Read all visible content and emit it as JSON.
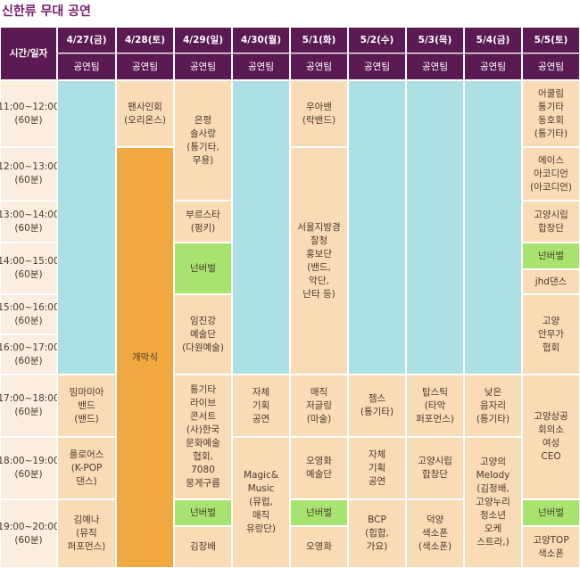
{
  "title": "신한류 무대 공연",
  "corner": "시간/일자",
  "times": [
    [
      "11:00~12:00",
      "(60분)"
    ],
    [
      "12:00~13:00",
      "(60분)"
    ],
    [
      "13:00~14:00",
      "(60분)"
    ],
    [
      "14:00~15:00",
      "(60분)"
    ],
    [
      "15:00~16:00",
      "(60분)"
    ],
    [
      "16:00~17:00",
      "(60분)"
    ],
    [
      "17:00~18:00",
      "(60분)"
    ],
    [
      "18:00~19:00",
      "(60분)"
    ],
    [
      "19:00~20:00",
      "(60분)"
    ]
  ],
  "columns": [
    {
      "date": "4/27(금)",
      "team": "공연팀",
      "cells": [
        [
          "밈마미아",
          "밴드",
          "(밴드)"
        ],
        [
          "플로어스",
          "(K-POP",
          "댄스)"
        ],
        [
          "김예나",
          "(뮤직",
          "퍼포먼스)"
        ]
      ]
    },
    {
      "date": "4/28(토)",
      "team": "공연팀",
      "cells": [
        [
          "팬사인회",
          "(오리온스)"
        ],
        [
          "개막식"
        ]
      ]
    },
    {
      "date": "4/29(일)",
      "team": "공연팀",
      "cells": [
        [
          "은평",
          "솔사랑",
          "(통기타,",
          "무용)"
        ],
        [
          "부르스타",
          "(펑키)"
        ],
        [
          "넌버벌"
        ],
        [
          "임진강",
          "예술단",
          "(다원예술)"
        ],
        [
          "통기타",
          "라이브",
          "콘서트",
          "(사)한국",
          "문화예술",
          "협회,",
          "7080",
          "뭉게구름"
        ],
        [
          "넌버벌"
        ],
        [
          "김장배"
        ]
      ]
    },
    {
      "date": "4/30(월)",
      "team": "공연팀",
      "cells": [
        [
          "자체",
          "기획",
          "공연"
        ],
        [
          "Magic&",
          "Music",
          "(뮤럽,",
          "매직",
          "유랑단)"
        ]
      ]
    },
    {
      "date": "5/1(화)",
      "team": "공연팀",
      "cells": [
        [
          "우아밴",
          "(락밴드)"
        ],
        [
          "서울지방경",
          "찰청",
          "홍보단",
          "(밴드,",
          "악단,",
          "난타 등)"
        ],
        [
          "매직",
          "저글링",
          "(마술)"
        ],
        [
          "오영화",
          "예술단"
        ],
        [
          "넌버벌"
        ],
        [
          "오영화"
        ]
      ]
    },
    {
      "date": "5/2(수)",
      "team": "공연팀",
      "cells": [
        [
          "젬스",
          "(통기타)"
        ],
        [
          "자체",
          "기획",
          "공연"
        ],
        [
          "BCP",
          "(힙합,",
          "가요)"
        ]
      ]
    },
    {
      "date": "5/3(목)",
      "team": "공연팀",
      "cells": [
        [
          "탑스틱",
          "(타악",
          "퍼포먼스)"
        ],
        [
          "고양시립",
          "합창단"
        ],
        [
          "덕양",
          "색소폰",
          "(색소폰)"
        ]
      ]
    },
    {
      "date": "5/4(금)",
      "team": "공연팀",
      "cells": [
        [
          "낮은",
          "음자리",
          "(통기타)"
        ],
        [
          "고양의",
          "Melody",
          "(김정배,",
          "고양누리",
          "청소년",
          "오케",
          "스트라,)"
        ]
      ]
    },
    {
      "date": "5/5(토)",
      "team": "공연팀",
      "cells": [
        [
          "어쿨림",
          "통기타",
          "동호회",
          "(통기타)"
        ],
        [
          "에이스",
          "아코디언",
          "(아코디언)"
        ],
        [
          "고양시립",
          "합창단"
        ],
        [
          "넌버벌"
        ],
        [
          "jhd댄스"
        ],
        [
          "고양",
          "안무가",
          "협회"
        ],
        [
          "고양상공",
          "회의소",
          "여성",
          "CEO"
        ],
        [
          "넌버벌"
        ],
        [
          "고양TOP",
          "색소폰"
        ]
      ]
    }
  ]
}
